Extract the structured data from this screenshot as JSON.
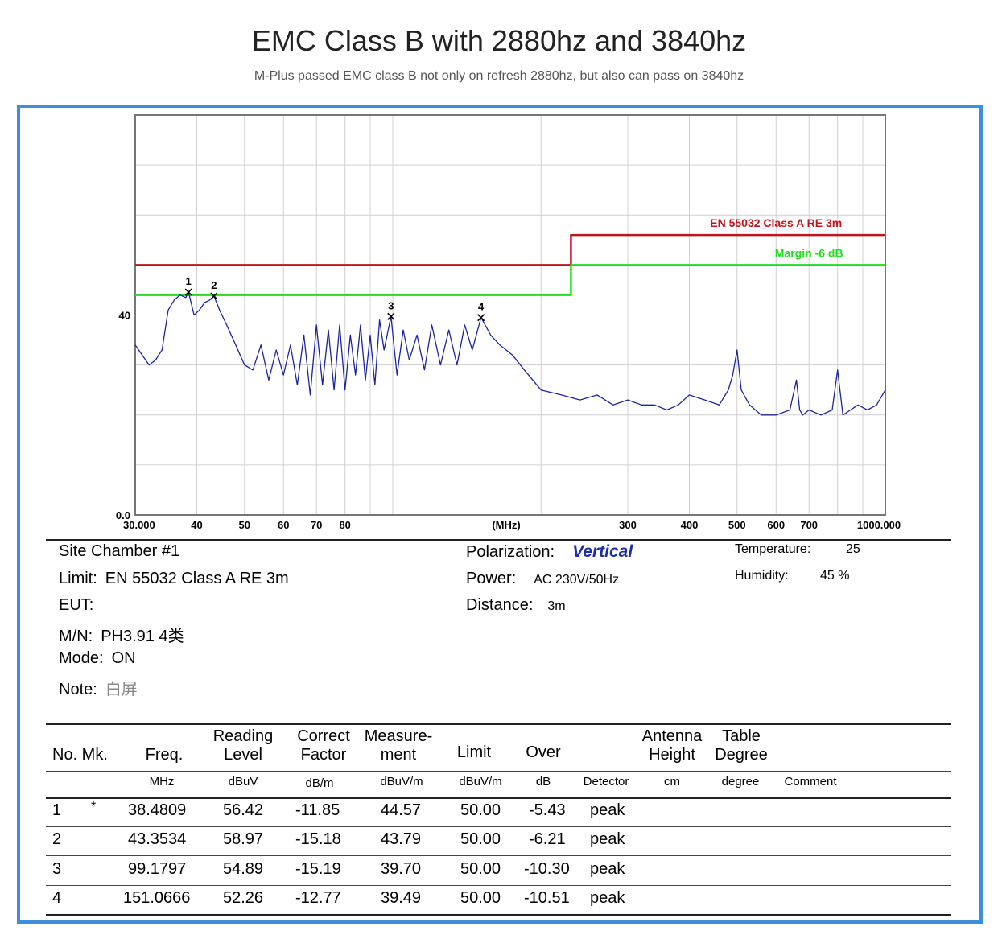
{
  "header": {
    "title": "EMC Class B with 2880hz and 3840hz",
    "subtitle": "M-Plus passed EMC class B not only on refresh 2880hz, but also can pass on 3840hz"
  },
  "chart_data": {
    "type": "line",
    "xscale": "log",
    "xlim": [
      30,
      1000
    ],
    "ylim": [
      0,
      80
    ],
    "y_tick_labels": [
      "40",
      "0.0"
    ],
    "x_tick_labels": [
      "30.000",
      "40",
      "50",
      "60",
      "70",
      "80",
      "(MHz)",
      "300",
      "400",
      "500",
      "600",
      "700",
      "1000.000"
    ],
    "grid": true,
    "series": [
      {
        "name": "EN 55032 Class A RE 3m",
        "color": "#c0141e",
        "x": [
          30,
          230,
          230,
          1000
        ],
        "y": [
          50,
          50,
          56,
          56
        ]
      },
      {
        "name": "Margin -6 dB",
        "color": "#22dd22",
        "x": [
          30,
          230,
          230,
          1000
        ],
        "y": [
          44,
          44,
          50,
          50
        ]
      },
      {
        "name": "",
        "color": "#1c24a0",
        "x": [
          30,
          31,
          32,
          33,
          34,
          35,
          36,
          37,
          38,
          38.48,
          39.5,
          40.5,
          41.5,
          42.5,
          43.35,
          44.5,
          46,
          48,
          50,
          52,
          54,
          56,
          58,
          60,
          62,
          64,
          66,
          68,
          70,
          72,
          74,
          76,
          78,
          80,
          82,
          84,
          86,
          88,
          90,
          92,
          94,
          96,
          99.18,
          102,
          105,
          108,
          112,
          116,
          120,
          125,
          130,
          135,
          140,
          145,
          151.07,
          158,
          165,
          175,
          185,
          200,
          220,
          240,
          260,
          280,
          300,
          320,
          340,
          360,
          380,
          400,
          430,
          460,
          480,
          490,
          500,
          510,
          530,
          560,
          600,
          640,
          660,
          670,
          680,
          700,
          740,
          780,
          800,
          820,
          850,
          880,
          920,
          960,
          1000
        ],
        "y": [
          34,
          32,
          30,
          31,
          33,
          41,
          43,
          44,
          43.5,
          44.6,
          40,
          41,
          42.5,
          43,
          43.8,
          41,
          38,
          34,
          30,
          29,
          34,
          27,
          33,
          28,
          34,
          26,
          36,
          24,
          38,
          26,
          37,
          25,
          38,
          25,
          36,
          28,
          38,
          27,
          36,
          26,
          39,
          33,
          39.7,
          28,
          37,
          31,
          36,
          29,
          38,
          30,
          37,
          30,
          38,
          33,
          39.5,
          36,
          34,
          32,
          29,
          25,
          24,
          23,
          24,
          22,
          23,
          22,
          22,
          21,
          22,
          24,
          23,
          22,
          25,
          28,
          33,
          25,
          22,
          20,
          20,
          21,
          27,
          21,
          20,
          21,
          20,
          21,
          29,
          20,
          21,
          22,
          21,
          22,
          25
        ]
      }
    ],
    "markers": [
      {
        "label": "1",
        "x": 38.4809,
        "y": 44.57
      },
      {
        "label": "2",
        "x": 43.3534,
        "y": 43.79
      },
      {
        "label": "3",
        "x": 99.1797,
        "y": 39.7
      },
      {
        "label": "4",
        "x": 151.0666,
        "y": 39.49
      }
    ]
  },
  "info": {
    "site": "Site  Chamber #1",
    "limit_label": "Limit:",
    "limit_value": "EN 55032 Class A RE 3m",
    "eut_label": "EUT:",
    "mn_label": "M/N:",
    "mn_value": "PH3.91 4类",
    "mode_label": "Mode:",
    "mode_value": "ON",
    "note_label": "Note:",
    "note_value": "白屏",
    "polarization_label": "Polarization:",
    "polarization_value": "Vertical",
    "power_label": "Power:",
    "power_value": "AC 230V/50Hz",
    "distance_label": "Distance:",
    "distance_value": "3m",
    "temperature_label": "Temperature:",
    "temperature_value": "25",
    "humidity_label": "Humidity:",
    "humidity_value": "45 %"
  },
  "table": {
    "headers": {
      "no_mk": "No.  Mk.",
      "freq": "Freq.",
      "reading_1": "Reading",
      "reading_2": "Level",
      "correct_1": "Correct",
      "correct_2": "Factor",
      "measure_1": "Measure-",
      "measure_2": "ment",
      "limit": "Limit",
      "over": "Over",
      "antenna_1": "Antenna",
      "antenna_2": "Height",
      "table_1": "Table",
      "table_2": "Degree"
    },
    "units": {
      "freq": "MHz",
      "reading": "dBuV",
      "correct": "dB/m",
      "measure": "dBuV/m",
      "limit": "dBuV/m",
      "over": "dB",
      "detector": "Detector",
      "antenna": "cm",
      "degree": "degree",
      "comment": "Comment"
    },
    "rows": [
      {
        "no": "1",
        "mk": "*",
        "freq": "38.4809",
        "reading": "56.42",
        "correct": "-11.85",
        "measure": "44.57",
        "limit": "50.00",
        "over": "-5.43",
        "detector": "peak"
      },
      {
        "no": "2",
        "mk": "",
        "freq": "43.3534",
        "reading": "58.97",
        "correct": "-15.18",
        "measure": "43.79",
        "limit": "50.00",
        "over": "-6.21",
        "detector": "peak"
      },
      {
        "no": "3",
        "mk": "",
        "freq": "99.1797",
        "reading": "54.89",
        "correct": "-15.19",
        "measure": "39.70",
        "limit": "50.00",
        "over": "-10.30",
        "detector": "peak"
      },
      {
        "no": "4",
        "mk": "",
        "freq": "151.0666",
        "reading": "52.26",
        "correct": "-12.77",
        "measure": "39.49",
        "limit": "50.00",
        "over": "-10.51",
        "detector": "peak"
      }
    ]
  }
}
